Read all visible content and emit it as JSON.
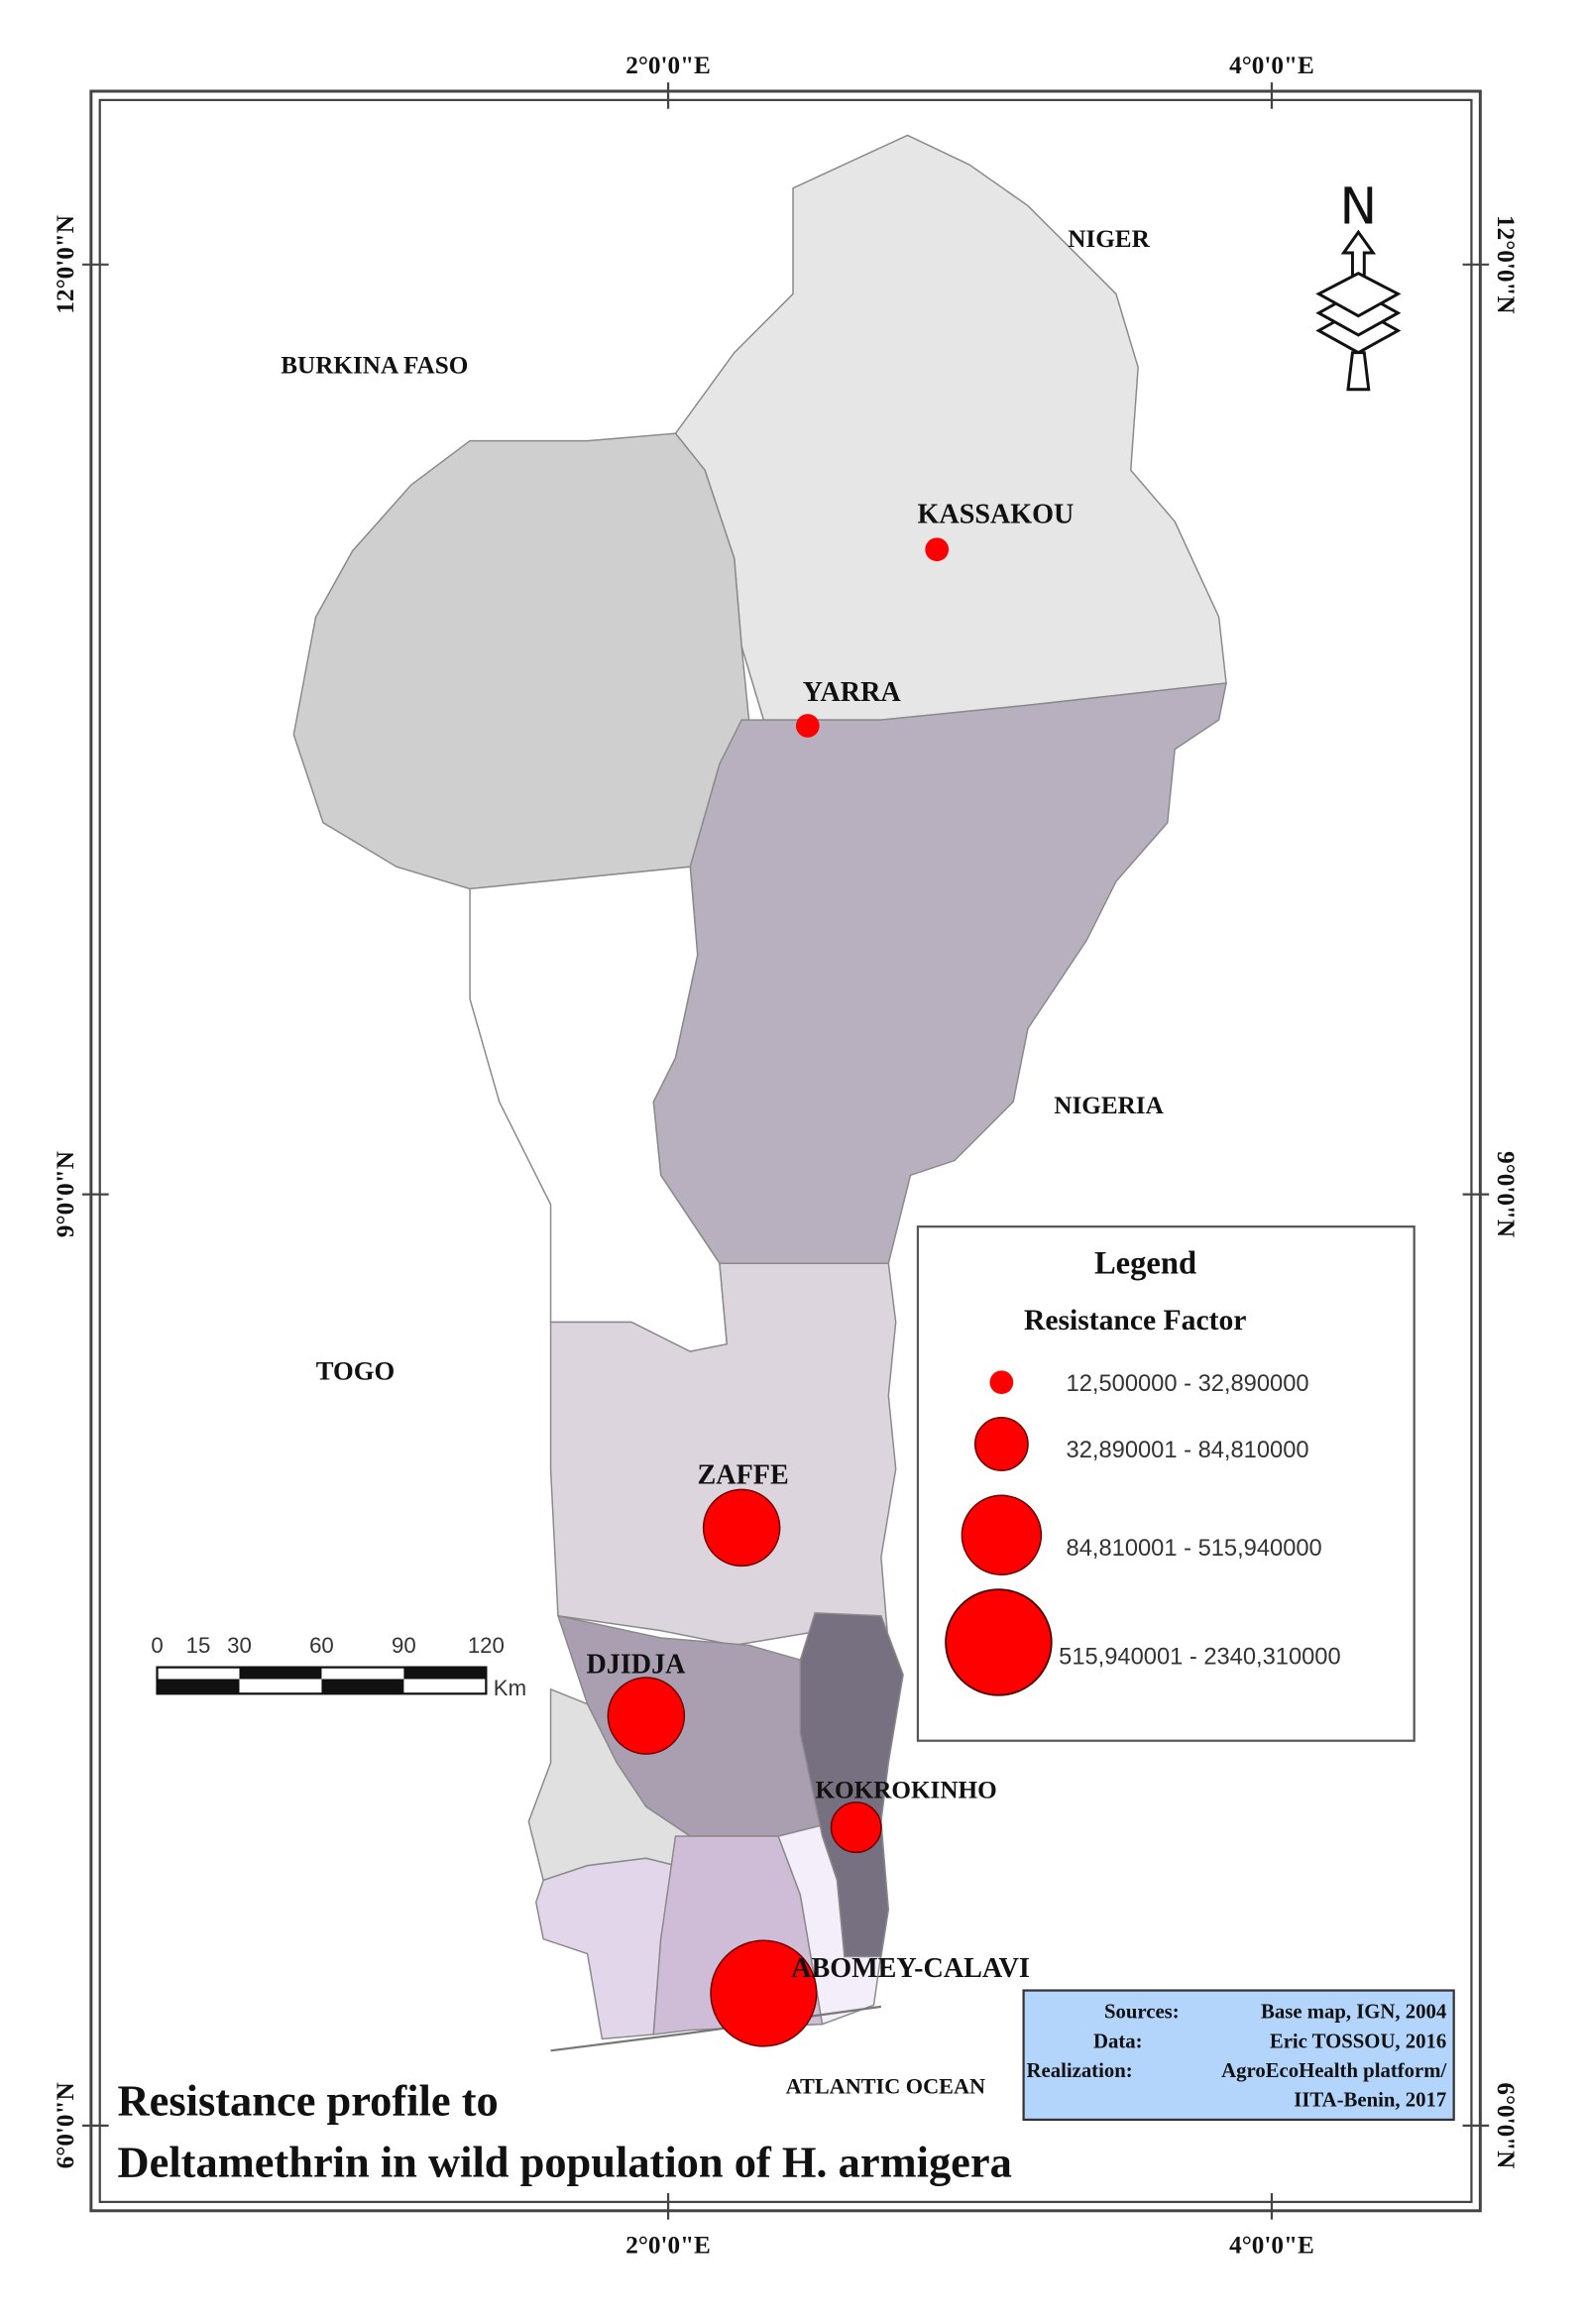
{
  "title": {
    "line1": "Resistance profile to",
    "line2": "Deltamethrin in wild population of H. armigera"
  },
  "graticule": {
    "longitudes": [
      "2°0'0\"E",
      "4°0'0\"E"
    ],
    "latitudes": [
      "12°0'0\"N",
      "9°0'0\"N",
      "6°0'0\"N"
    ]
  },
  "countries": {
    "niger": "NIGER",
    "burkina_faso": "BURKINA FASO",
    "nigeria": "NIGERIA",
    "togo": "TOGO",
    "ocean": "ATLANTIC OCEAN"
  },
  "sites": [
    {
      "name": "KASSAKOU",
      "class": 1
    },
    {
      "name": "YARRA",
      "class": 1
    },
    {
      "name": "ZAFFE",
      "class": 3
    },
    {
      "name": "DJIDJA",
      "class": 3
    },
    {
      "name": "KOKROKINHO",
      "class": 2
    },
    {
      "name": "ABOMEY-CALAVI",
      "class": 4
    }
  ],
  "legend": {
    "title": "Legend",
    "subtitle": "Resistance Factor",
    "classes": [
      "12,500000 - 32,890000",
      "32,890001 - 84,810000",
      "84,810001 - 515,940000",
      "515,940001 - 2340,310000"
    ]
  },
  "scale_bar": {
    "ticks": [
      "0",
      "15",
      "30",
      "60",
      "90",
      "120"
    ],
    "unit": "Km"
  },
  "north_arrow": {
    "label": "N",
    "icon": "north-arrow-icon"
  },
  "credits": {
    "sources_label": "Sources:",
    "sources_value": "Base map, IGN, 2004",
    "data_label": "Data:",
    "data_value": "Eric TOSSOU, 2016",
    "realization_label": "Realization:",
    "realization_value_1": "AgroEcoHealth platform/",
    "realization_value_2": "IITA-Benin, 2017"
  },
  "colors": {
    "marker": "#ff0000",
    "credits_bg": "#b3d4fb",
    "alibori": "#e6e6e6",
    "atacora": "#cfcfcf",
    "borgou": "#b8b0bf",
    "donga": "#ffffff",
    "collines": "#dcd5de",
    "zou": "#aa9fb0",
    "plateau": "#777080"
  }
}
